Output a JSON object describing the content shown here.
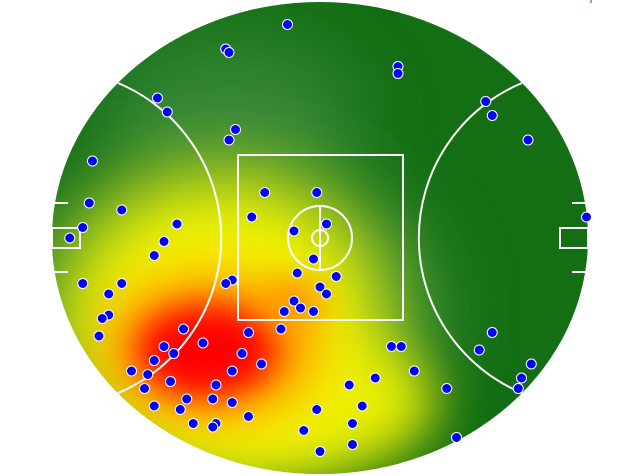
{
  "chart_data": {
    "type": "heatmap",
    "title": "",
    "xlabel": "",
    "ylabel": "",
    "field": {
      "shape": "oval",
      "length_m": 165,
      "width_m": 135
    },
    "grid": false,
    "colors": {
      "field_low": "#146f14",
      "field_mid": "#3f8f3f",
      "heat_yellow": "#f5f500",
      "heat_orange": "#ff8c00",
      "heat_red": "#ff0000",
      "marker_fill": "#0000ff",
      "marker_stroke": "#ffffff",
      "lines": "#ffffff"
    },
    "heat_peak_m": [
      -35,
      -30
    ],
    "points_m": [
      [
        -10,
        61
      ],
      [
        -29,
        54
      ],
      [
        -28,
        53
      ],
      [
        24,
        49
      ],
      [
        24,
        47
      ],
      [
        -50,
        40
      ],
      [
        -47,
        36
      ],
      [
        51,
        39
      ],
      [
        53,
        35
      ],
      [
        -26,
        31
      ],
      [
        -28,
        28
      ],
      [
        64,
        28
      ],
      [
        -70,
        22
      ],
      [
        -17,
        13
      ],
      [
        -1,
        13
      ],
      [
        -71,
        10
      ],
      [
        -61,
        8
      ],
      [
        -44,
        4
      ],
      [
        -21,
        6
      ],
      [
        -73,
        3
      ],
      [
        2,
        4
      ],
      [
        82,
        6
      ],
      [
        -8,
        2
      ],
      [
        -77,
        0
      ],
      [
        -48,
        -1
      ],
      [
        -51,
        -5
      ],
      [
        -2,
        -6
      ],
      [
        -7,
        -10
      ],
      [
        5,
        -11
      ],
      [
        -27,
        -12
      ],
      [
        -29,
        -13
      ],
      [
        -73,
        -13
      ],
      [
        -61,
        -13
      ],
      [
        -65,
        -16
      ],
      [
        0,
        -14
      ],
      [
        2,
        -16
      ],
      [
        -8,
        -18
      ],
      [
        -11,
        -21
      ],
      [
        -6,
        -20
      ],
      [
        -2,
        -21
      ],
      [
        -65,
        -22
      ],
      [
        -67,
        -23
      ],
      [
        -42,
        -26
      ],
      [
        -12,
        -26
      ],
      [
        -22,
        -27
      ],
      [
        -68,
        -28
      ],
      [
        53,
        -27
      ],
      [
        -36,
        -30
      ],
      [
        -48,
        -31
      ],
      [
        22,
        -31
      ],
      [
        25,
        -31
      ],
      [
        49,
        -32
      ],
      [
        -24,
        -33
      ],
      [
        -45,
        -33
      ],
      [
        -51,
        -35
      ],
      [
        -18,
        -36
      ],
      [
        65,
        -36
      ],
      [
        -58,
        -38
      ],
      [
        -27,
        -38
      ],
      [
        -53,
        -39
      ],
      [
        29,
        -38
      ],
      [
        17,
        -40
      ],
      [
        62,
        -40
      ],
      [
        -46,
        -41
      ],
      [
        -32,
        -42
      ],
      [
        9,
        -42
      ],
      [
        39,
        -43
      ],
      [
        61,
        -43
      ],
      [
        -54,
        -43
      ],
      [
        -41,
        -46
      ],
      [
        -33,
        -46
      ],
      [
        -27,
        -47
      ],
      [
        -51,
        -48
      ],
      [
        -43,
        -49
      ],
      [
        13,
        -48
      ],
      [
        -1,
        -49
      ],
      [
        -22,
        -51
      ],
      [
        -32,
        -53
      ],
      [
        -39,
        -53
      ],
      [
        -33,
        -54
      ],
      [
        10,
        -53
      ],
      [
        -5,
        -55
      ],
      [
        42,
        -57
      ],
      [
        10,
        -59
      ],
      [
        0,
        -61
      ]
    ]
  }
}
